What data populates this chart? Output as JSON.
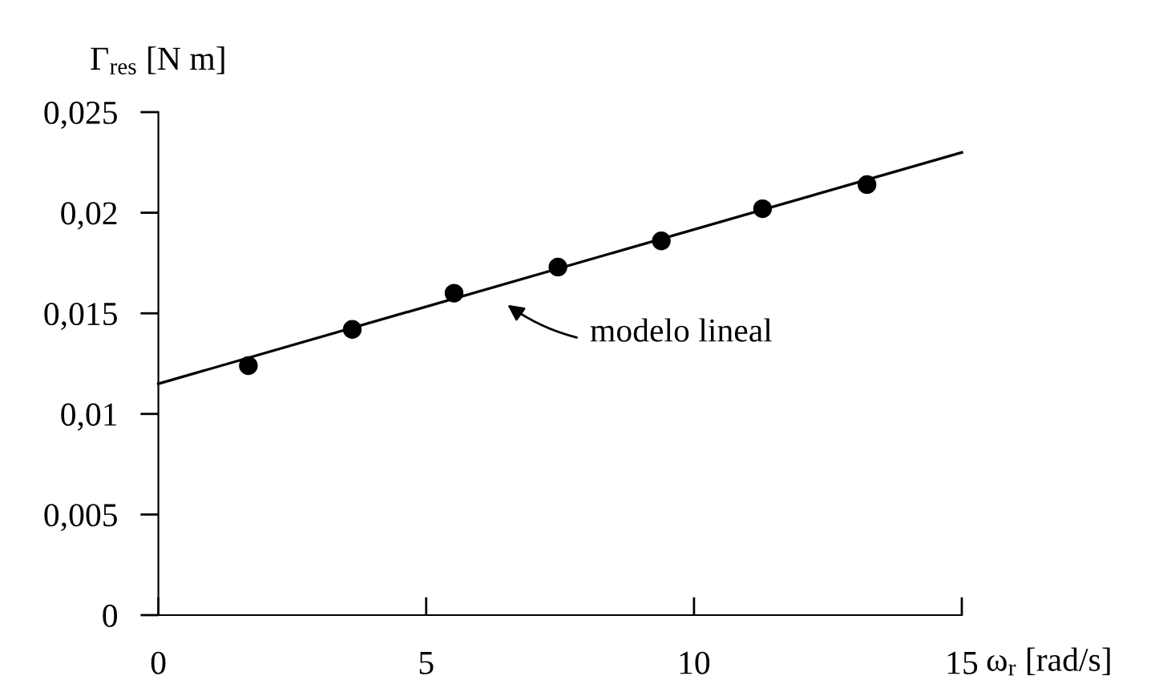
{
  "chart_data": {
    "type": "scatter",
    "xlabel": "ω$_{r}$ [rad/s]",
    "ylabel": "Γ$_{res}$ [N m]",
    "xlim": [
      0,
      15
    ],
    "ylim": [
      0,
      0.025
    ],
    "xticks": [
      0,
      5,
      10,
      15
    ],
    "yticks": [
      0,
      {
        "value": 0.005,
        "label": "0,005"
      },
      {
        "value": 0.01,
        "label": "0,01"
      },
      {
        "value": 0.015,
        "label": "0,015"
      },
      {
        "value": 0.02,
        "label": "0,02"
      },
      {
        "value": 0.025,
        "label": "0,025"
      }
    ],
    "grid": false,
    "legend": false,
    "series": [
      {
        "color": "#000000",
        "marker": "circle",
        "x": [
          1.68,
          3.62,
          5.52,
          7.46,
          9.39,
          11.28,
          13.23
        ],
        "values": [
          0.0124,
          0.0142,
          0.016,
          0.0173,
          0.0186,
          0.0202,
          0.0214
        ]
      },
      {
        "type": "line",
        "color": "#000000",
        "marker": "none",
        "line_style": "solid",
        "x": [
          0,
          15
        ],
        "values": [
          0.0115,
          0.023
        ]
      }
    ],
    "annotations": [
      "modelo lineal"
    ]
  }
}
